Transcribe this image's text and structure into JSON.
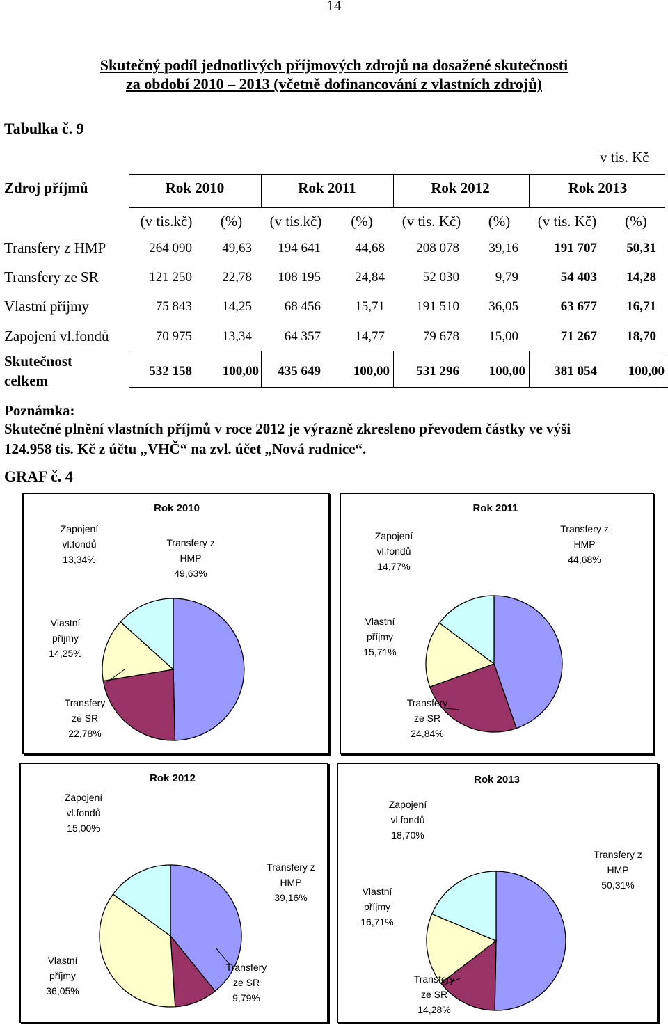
{
  "page_number": "14",
  "heading": {
    "line1": "Skutečný podíl jednotlivých příjmových zdrojů na dosažené skutečnosti",
    "line2": "za období 2010 – 2013 (včetně dofinancování z vlastních zdrojů)"
  },
  "table_label": "Tabulka č. 9",
  "unit_label": "v tis. Kč",
  "table": {
    "header_source": "Zdroj příjmů",
    "years": [
      "Rok 2010",
      "Rok 2011",
      "Rok 2012",
      "Rok 2013"
    ],
    "subheaders": [
      "(v tis.kč)",
      "(%)",
      "(v tis.kč)",
      "(%)",
      "(v tis. Kč)",
      "(%)",
      "(v tis. Kč)",
      "(%)"
    ],
    "rows": [
      {
        "label": "Transfery z HMP",
        "values": [
          "264 090",
          "49,63",
          "194 641",
          "44,68",
          "208 078",
          "39,16",
          "191 707",
          "50,31"
        ]
      },
      {
        "label": "Transfery ze SR",
        "values": [
          "121 250",
          "22,78",
          "108 195",
          "24,84",
          "52 030",
          "9,79",
          "54 403",
          "14,28"
        ]
      },
      {
        "label": "Vlastní příjmy",
        "values": [
          "75 843",
          "14,25",
          "68 456",
          "15,71",
          "191 510",
          "36,05",
          "63 677",
          "16,71"
        ]
      },
      {
        "label": "Zapojení vl.fondů",
        "values": [
          "70 975",
          "13,34",
          "64 357",
          "14,77",
          "79 678",
          "15,00",
          "71 267",
          "18,70"
        ]
      }
    ],
    "total": {
      "label_line1": "Skutečnost",
      "label_line2": "celkem",
      "values": [
        "532 158",
        "100,00",
        "435 649",
        "100,00",
        "531 296",
        "100,00",
        "381 054",
        "100,00"
      ]
    }
  },
  "note": {
    "heading": "Poznámka:",
    "line1": "Skutečné plnění vlastních příjmů v roce 2012 je výrazně zkresleno převodem částky ve výši",
    "line2": "124.958 tis. Kč z účtu „VHČ“ na zvl. účet „Nová radnice“."
  },
  "graf_label": "GRAF č. 4",
  "colors": {
    "hmp": "#9999ff",
    "sr": "#993366",
    "vlastni": "#ffffcc",
    "fondy": "#ccffff"
  },
  "chart_data": [
    {
      "type": "pie",
      "title": "Rok 2010",
      "categories": [
        "Transfery z HMP",
        "Transfery ze SR",
        "Vlastní příjmy",
        "Zapojení vl.fondů"
      ],
      "values": [
        49.63,
        22.78,
        14.25,
        13.34
      ],
      "labels": [
        [
          "Transfery z",
          "HMP",
          "49,63%"
        ],
        [
          "Transfery",
          "ze SR",
          "22,78%"
        ],
        [
          "Vlastní",
          "příjmy",
          "14,25%"
        ],
        [
          "Zapojení",
          "vl.fondů",
          "13,34%"
        ]
      ]
    },
    {
      "type": "pie",
      "title": "Rok 2011",
      "categories": [
        "Transfery z HMP",
        "Transfery ze SR",
        "Vlastní příjmy",
        "Zapojení vl.fondů"
      ],
      "values": [
        44.68,
        24.84,
        15.71,
        14.77
      ],
      "labels": [
        [
          "Transfery z",
          "HMP",
          "44,68%"
        ],
        [
          "Transfery",
          "ze SR",
          "24,84%"
        ],
        [
          "Vlastní",
          "příjmy",
          "15,71%"
        ],
        [
          "Zapojení",
          "vl.fondů",
          "14,77%"
        ]
      ]
    },
    {
      "type": "pie",
      "title": "Rok 2012",
      "categories": [
        "Transfery z HMP",
        "Transfery ze SR",
        "Vlastní příjmy",
        "Zapojení vl.fondů"
      ],
      "values": [
        39.16,
        9.79,
        36.05,
        15.0
      ],
      "labels": [
        [
          "Transfery z",
          "HMP",
          "39,16%"
        ],
        [
          "Transfery",
          "ze SR",
          "9,79%"
        ],
        [
          "Vlastní",
          "příjmy",
          "36,05%"
        ],
        [
          "Zapojení",
          "vl.fondů",
          "15,00%"
        ]
      ]
    },
    {
      "type": "pie",
      "title": "Rok 2013",
      "categories": [
        "Transfery z HMP",
        "Transfery ze SR",
        "Vlastní příjmy",
        "Zapojení vl.fondů"
      ],
      "values": [
        50.31,
        14.28,
        16.71,
        18.7
      ],
      "labels": [
        [
          "Transfery z",
          "HMP",
          "50,31%"
        ],
        [
          "Transfery",
          "ze SR",
          "14,28%"
        ],
        [
          "Vlastní",
          "příjmy",
          "16,71%"
        ],
        [
          "Zapojení",
          "vl.fondů",
          "18,70%"
        ]
      ]
    }
  ]
}
